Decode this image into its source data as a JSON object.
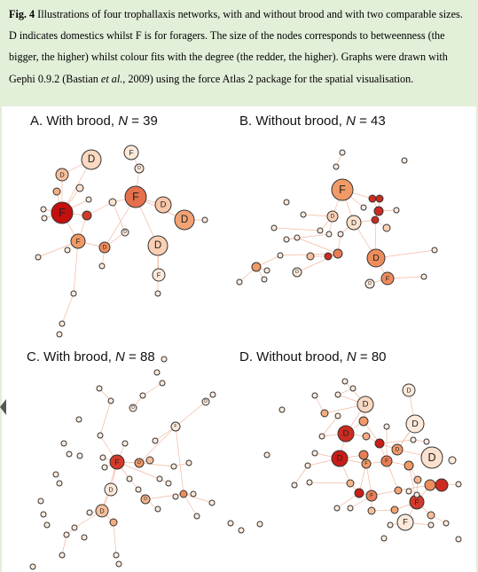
{
  "caption": {
    "fig_label": "Fig. 4",
    "text_1": " Illustrations of four trophallaxis networks, with and without brood and with two comparable sizes. D indicates domestics whilst F is for foragers. The size of the nodes corresponds to betweenness (the bigger, the higher) whilst colour fits with the degree (the redder, the higher). Graphs were drawn with Gephi 0.9.2 (Bastian ",
    "et_al": "et al.",
    "text_2": ", 2009) using the force Atlas 2 package for the spatial visualisation."
  },
  "panels": [
    {
      "id": "A",
      "prefix": "A. With brood, ",
      "n_label": "N",
      "n_value": " = 39"
    },
    {
      "id": "B",
      "prefix": "B. Without brood, ",
      "n_label": "N",
      "n_value": " = 43"
    },
    {
      "id": "C",
      "prefix": "C. With brood, ",
      "n_label": "N",
      "n_value": " = 88"
    },
    {
      "id": "D",
      "prefix": "D. Without brood, ",
      "n_label": "N",
      "n_value": " = 80"
    }
  ],
  "node_labels": {
    "domestic": "D",
    "forager": "F"
  },
  "colors": {
    "caption_bg": "#e2efd9",
    "degree_low": "#fff3e8",
    "degree_mid": "#f29a66",
    "degree_high": "#c40f0f",
    "edge": "#f3b8a0"
  }
}
